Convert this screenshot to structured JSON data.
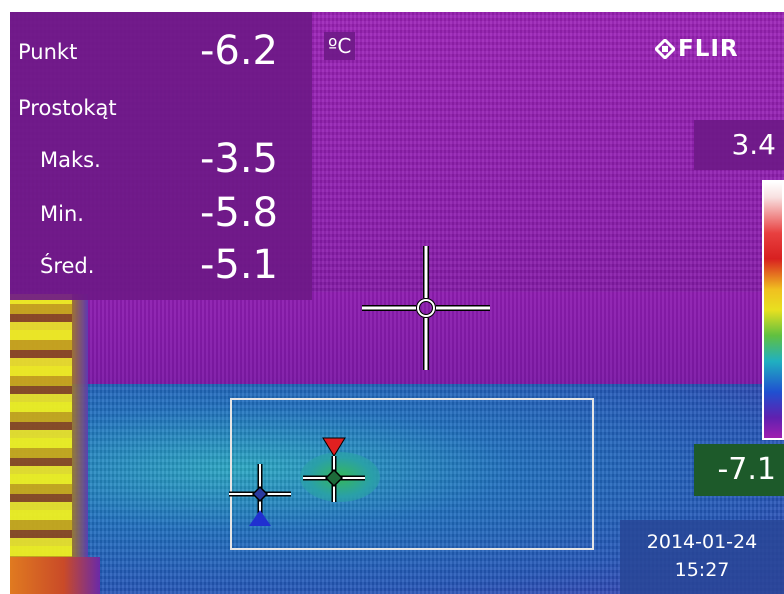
{
  "measurements": {
    "spot": {
      "label": "Punkt",
      "value": "-6.2"
    },
    "rectangle": {
      "label": "Prostokąt"
    },
    "max": {
      "label": "Maks.",
      "value": "-3.5"
    },
    "min": {
      "label": "Min.",
      "value": "-5.8"
    },
    "avg": {
      "label": "Śred.",
      "value": "-5.1"
    },
    "unit": "ºC"
  },
  "brand": {
    "name": "FLIR",
    "icon": "flir-logo-icon"
  },
  "scale": {
    "max": "3.4",
    "min": "-7.1",
    "palette": "iron-rainbow"
  },
  "timestamp": {
    "date": "2014-01-24",
    "time": "15:27"
  },
  "colors": {
    "panel": "#6e1987",
    "min_box": "#1d5a2a",
    "text": "#ffffff",
    "hot_marker": "#e02020",
    "cold_marker": "#2030d0"
  }
}
